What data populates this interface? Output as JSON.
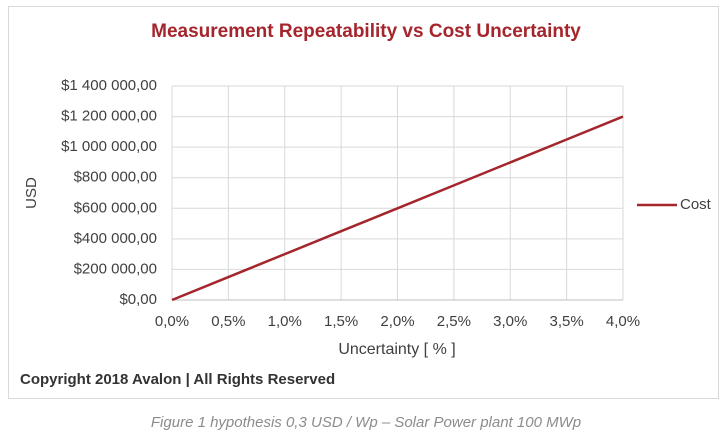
{
  "chart_data": {
    "type": "line",
    "title": "Measurement Repeatability vs Cost Uncertainty",
    "x_label": "Uncertainty [ % ]",
    "y_label": "USD",
    "x": [
      0,
      0.5,
      1.0,
      1.5,
      2.0,
      2.5,
      3.0,
      3.5,
      4.0
    ],
    "series": [
      {
        "name": "Cost",
        "color": "#a4262c",
        "values": [
          0,
          150000,
          300000,
          450000,
          600000,
          750000,
          900000,
          1050000,
          1200000
        ]
      }
    ],
    "xlim": [
      0,
      4.0
    ],
    "xticks": [
      {
        "value": 0,
        "label": "0,0%"
      },
      {
        "value": 0.5,
        "label": "0,5%"
      },
      {
        "value": 1.0,
        "label": "1,0%"
      },
      {
        "value": 1.5,
        "label": "1,5%"
      },
      {
        "value": 2.0,
        "label": "2,0%"
      },
      {
        "value": 2.5,
        "label": "2,5%"
      },
      {
        "value": 3.0,
        "label": "3,0%"
      },
      {
        "value": 3.5,
        "label": "3,5%"
      },
      {
        "value": 4.0,
        "label": "4,0%"
      }
    ],
    "ylim": [
      0,
      1400000
    ],
    "yticks": [
      {
        "value": 0,
        "label": "$0,00"
      },
      {
        "value": 200000,
        "label": "$200 000,00"
      },
      {
        "value": 400000,
        "label": "$400 000,00"
      },
      {
        "value": 600000,
        "label": "$600 000,00"
      },
      {
        "value": 800000,
        "label": "$800 000,00"
      },
      {
        "value": 1000000,
        "label": "$1 000 000,00"
      },
      {
        "value": 1200000,
        "label": "$1 200 000,00"
      },
      {
        "value": 1400000,
        "label": "$1 400 000,00"
      }
    ],
    "grid": true,
    "legend": "right",
    "copyright": "Copyright 2018 Avalon | All Rights Reserved",
    "caption": "Figure 1 hypothesis 0,3 USD / Wp – Solar Power plant 100 MWp"
  }
}
